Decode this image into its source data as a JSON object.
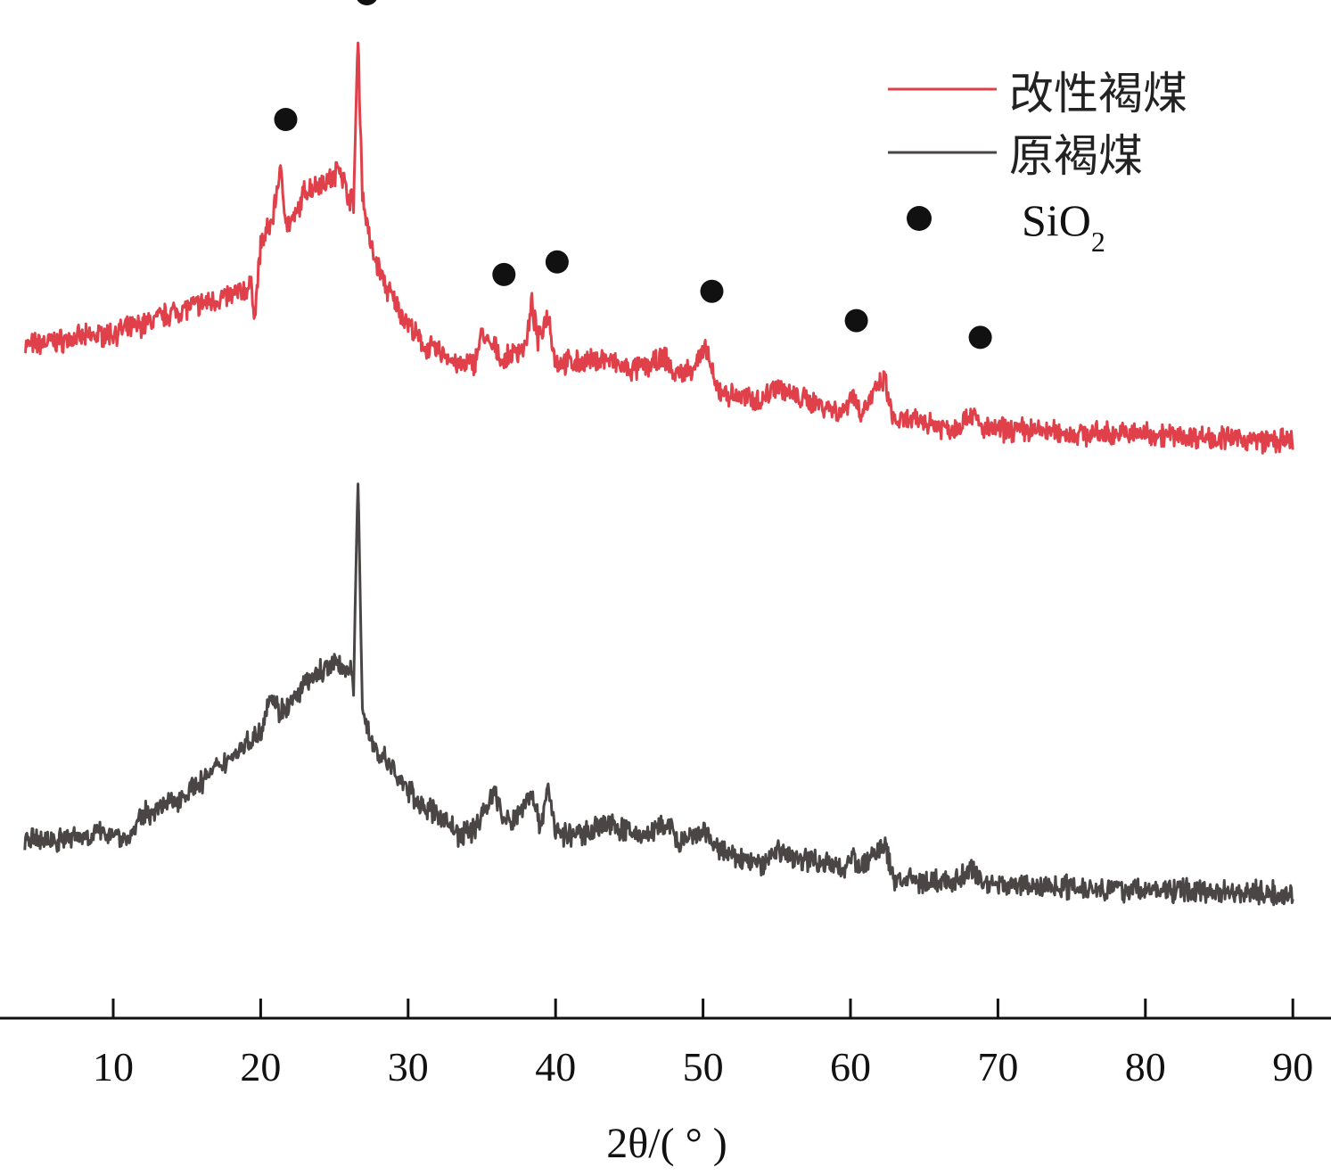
{
  "chart_data": {
    "type": "line",
    "title": "",
    "xlabel": "2θ/( ° )",
    "ylabel": "",
    "xlim": [
      4,
      90
    ],
    "x_ticks": [
      10,
      20,
      30,
      40,
      50,
      60,
      70,
      80,
      90
    ],
    "y_axis_visible": false,
    "grid": false,
    "legend_position": "top-right",
    "series": [
      {
        "name": "改性褐煤",
        "color": "#e0404a",
        "offset": 1.0,
        "points": [
          [
            4,
            0.26
          ],
          [
            6,
            0.27
          ],
          [
            8,
            0.28
          ],
          [
            10,
            0.29
          ],
          [
            12,
            0.31
          ],
          [
            14,
            0.34
          ],
          [
            16,
            0.36
          ],
          [
            18,
            0.38
          ],
          [
            19.4,
            0.4
          ],
          [
            19.6,
            0.33
          ],
          [
            20,
            0.5
          ],
          [
            20.8,
            0.56
          ],
          [
            21.3,
            0.68
          ],
          [
            21.8,
            0.55
          ],
          [
            22.3,
            0.56
          ],
          [
            23,
            0.63
          ],
          [
            24,
            0.65
          ],
          [
            25,
            0.66
          ],
          [
            25.3,
            0.7
          ],
          [
            25.8,
            0.63
          ],
          [
            26.3,
            0.6
          ],
          [
            26.6,
            1.0
          ],
          [
            26.9,
            0.62
          ],
          [
            27.5,
            0.49
          ],
          [
            28.5,
            0.4
          ],
          [
            29.5,
            0.34
          ],
          [
            31,
            0.26
          ],
          [
            32.5,
            0.24
          ],
          [
            33.5,
            0.21
          ],
          [
            34.5,
            0.22
          ],
          [
            35,
            0.29
          ],
          [
            35.5,
            0.26
          ],
          [
            36,
            0.25
          ],
          [
            36.5,
            0.22
          ],
          [
            37,
            0.24
          ],
          [
            38,
            0.26
          ],
          [
            38.4,
            0.36
          ],
          [
            38.8,
            0.27
          ],
          [
            39.5,
            0.34
          ],
          [
            40,
            0.22
          ],
          [
            41,
            0.22
          ],
          [
            42,
            0.22
          ],
          [
            43.3,
            0.23
          ],
          [
            45,
            0.2
          ],
          [
            46,
            0.21
          ],
          [
            47.5,
            0.23
          ],
          [
            48,
            0.19
          ],
          [
            49,
            0.2
          ],
          [
            50.3,
            0.25
          ],
          [
            50.8,
            0.16
          ],
          [
            52,
            0.14
          ],
          [
            54,
            0.13
          ],
          [
            55,
            0.17
          ],
          [
            56,
            0.14
          ],
          [
            58,
            0.12
          ],
          [
            59.5,
            0.1
          ],
          [
            60.1,
            0.15
          ],
          [
            60.7,
            0.1
          ],
          [
            62.3,
            0.18
          ],
          [
            62.9,
            0.08
          ],
          [
            65,
            0.08
          ],
          [
            67,
            0.06
          ],
          [
            68.2,
            0.1
          ],
          [
            69,
            0.06
          ],
          [
            72,
            0.06
          ],
          [
            75,
            0.05
          ],
          [
            80,
            0.05
          ],
          [
            85,
            0.04
          ],
          [
            90,
            0.03
          ]
        ]
      },
      {
        "name": "原褐煤",
        "color": "#4a4646",
        "offset": 0.0,
        "points": [
          [
            4,
            0.08
          ],
          [
            6,
            0.08
          ],
          [
            8,
            0.09
          ],
          [
            10,
            0.1
          ],
          [
            11,
            0.08
          ],
          [
            12,
            0.14
          ],
          [
            14,
            0.17
          ],
          [
            16,
            0.22
          ],
          [
            18,
            0.28
          ],
          [
            19,
            0.31
          ],
          [
            20,
            0.34
          ],
          [
            20.6,
            0.43
          ],
          [
            21.2,
            0.39
          ],
          [
            22,
            0.4
          ],
          [
            23,
            0.45
          ],
          [
            24,
            0.48
          ],
          [
            25,
            0.5
          ],
          [
            26,
            0.49
          ],
          [
            26.3,
            0.45
          ],
          [
            26.6,
            0.94
          ],
          [
            26.9,
            0.4
          ],
          [
            27.5,
            0.31
          ],
          [
            28.5,
            0.27
          ],
          [
            29.5,
            0.22
          ],
          [
            31,
            0.16
          ],
          [
            32.5,
            0.13
          ],
          [
            33.5,
            0.09
          ],
          [
            34.5,
            0.11
          ],
          [
            35,
            0.14
          ],
          [
            35.9,
            0.2
          ],
          [
            36.4,
            0.13
          ],
          [
            37,
            0.12
          ],
          [
            38.4,
            0.2
          ],
          [
            38.9,
            0.11
          ],
          [
            39.5,
            0.21
          ],
          [
            40,
            0.1
          ],
          [
            41,
            0.09
          ],
          [
            42,
            0.1
          ],
          [
            43.3,
            0.12
          ],
          [
            45,
            0.1
          ],
          [
            46,
            0.09
          ],
          [
            47.7,
            0.12
          ],
          [
            48.3,
            0.07
          ],
          [
            49,
            0.08
          ],
          [
            50,
            0.1
          ],
          [
            51,
            0.06
          ],
          [
            52,
            0.04
          ],
          [
            54,
            0.02
          ],
          [
            55,
            0.06
          ],
          [
            56,
            0.04
          ],
          [
            58,
            0.03
          ],
          [
            59.5,
            0.01
          ],
          [
            60.1,
            0.05
          ],
          [
            60.6,
            0.01
          ],
          [
            62.3,
            0.07
          ],
          [
            62.9,
            -0.01
          ],
          [
            65,
            -0.02
          ],
          [
            67,
            -0.02
          ],
          [
            68.2,
            0.01
          ],
          [
            69,
            -0.02
          ],
          [
            72,
            -0.03
          ],
          [
            75,
            -0.03
          ],
          [
            80,
            -0.04
          ],
          [
            85,
            -0.04
          ],
          [
            90,
            -0.05
          ]
        ]
      },
      {
        "name": "SiO2",
        "type": "scatter",
        "color": "#111111",
        "offset": 1.0,
        "points": [
          [
            21.7,
            0.8
          ],
          [
            27.2,
            1.1
          ],
          [
            36.5,
            0.43
          ],
          [
            40.1,
            0.46
          ],
          [
            50.6,
            0.39
          ],
          [
            60.4,
            0.32
          ],
          [
            68.8,
            0.28
          ]
        ]
      }
    ],
    "legend": {
      "items": [
        {
          "label": "改性褐煤",
          "kind": "line",
          "color": "#e0404a"
        },
        {
          "label": "原褐煤",
          "kind": "line",
          "color": "#4a4646"
        },
        {
          "label": "SiO",
          "subscript": "2",
          "kind": "dot",
          "color": "#111111"
        }
      ]
    }
  }
}
